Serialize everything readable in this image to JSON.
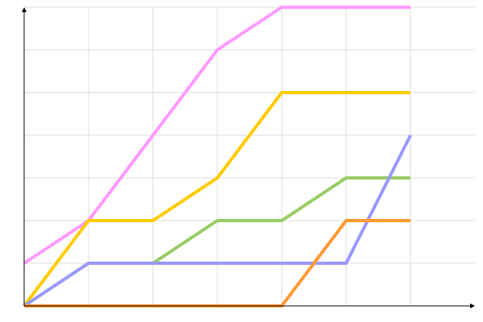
{
  "chart_data": {
    "type": "line",
    "title": "",
    "xlabel": "",
    "ylabel": "",
    "x": [
      0,
      1,
      2,
      3,
      4,
      5,
      6
    ],
    "xlim": [
      0,
      7
    ],
    "ylim": [
      0,
      7
    ],
    "grid": true,
    "legend": "none",
    "series": [
      {
        "color": "#ff99ff",
        "values": [
          1,
          2,
          4,
          6,
          7,
          7,
          7
        ]
      },
      {
        "color": "#ffcc00",
        "values": [
          0,
          2,
          2,
          3,
          5,
          5,
          5
        ]
      },
      {
        "color": "#99cc66",
        "values": [
          0,
          1,
          1,
          2,
          2,
          3,
          3
        ]
      },
      {
        "color": "#9999ff",
        "values": [
          0,
          1,
          1,
          1,
          1,
          1,
          4
        ]
      },
      {
        "color": "#ff9933",
        "values": [
          0,
          0,
          0,
          0,
          0,
          2,
          2
        ]
      }
    ]
  }
}
